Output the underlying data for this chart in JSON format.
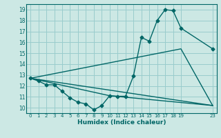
{
  "xlabel": "Humidex (Indice chaleur)",
  "bg_color": "#cce8e4",
  "line_color": "#006666",
  "grid_color": "#99cccc",
  "xlim": [
    -0.5,
    23.5
  ],
  "ylim": [
    9.5,
    19.5
  ],
  "xticks": [
    0,
    1,
    2,
    3,
    4,
    5,
    6,
    7,
    8,
    9,
    10,
    11,
    12,
    13,
    14,
    15,
    16,
    17,
    18,
    19,
    23
  ],
  "yticks": [
    10,
    11,
    12,
    13,
    14,
    15,
    16,
    17,
    18,
    19
  ],
  "curve1_x": [
    0,
    1,
    2,
    3,
    4,
    5,
    6,
    7,
    8,
    9,
    10,
    11,
    12,
    13,
    14,
    15,
    16,
    17,
    18,
    19,
    23
  ],
  "curve1_y": [
    12.7,
    12.45,
    12.1,
    12.1,
    11.5,
    10.9,
    10.5,
    10.35,
    9.8,
    10.2,
    11.1,
    11.05,
    11.05,
    12.9,
    16.45,
    16.1,
    18.0,
    19.0,
    18.9,
    17.3,
    15.4
  ],
  "line2_x": [
    0,
    23
  ],
  "line2_y": [
    12.7,
    10.2
  ],
  "line3_x": [
    0,
    10,
    23
  ],
  "line3_y": [
    12.7,
    11.1,
    10.2
  ],
  "line4_x": [
    0,
    19,
    23
  ],
  "line4_y": [
    12.7,
    15.4,
    10.2
  ]
}
